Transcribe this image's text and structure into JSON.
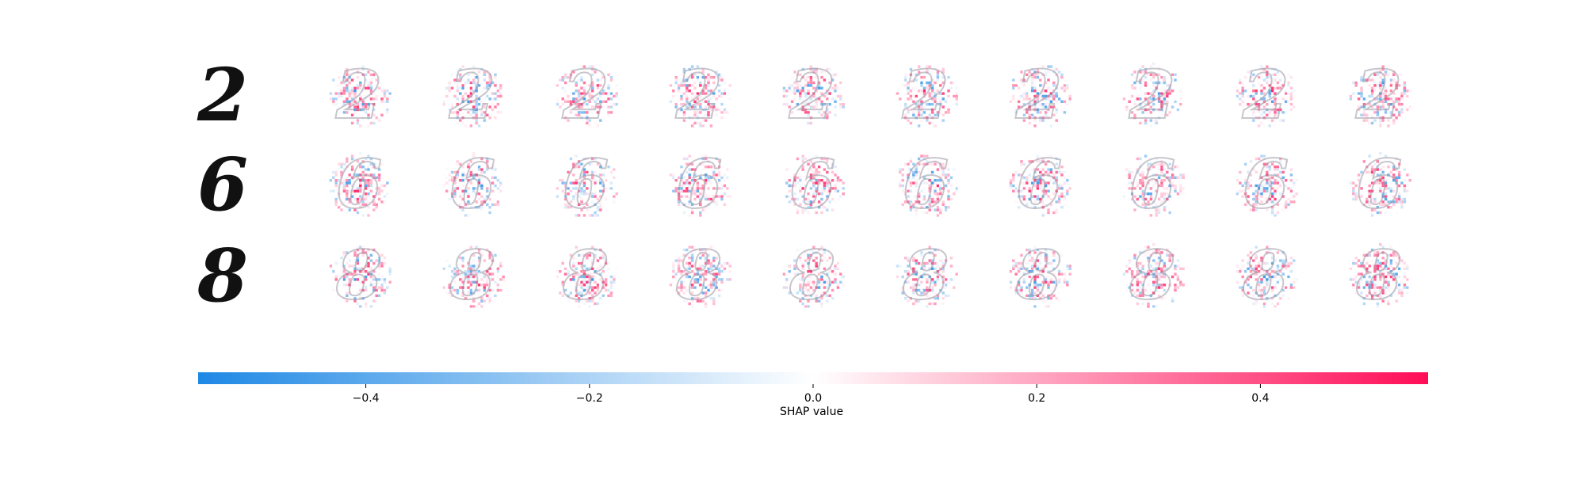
{
  "chart_data": {
    "type": "heatmap",
    "title": "",
    "rows": [
      {
        "digit": "2",
        "glyph": "2"
      },
      {
        "digit": "6",
        "glyph": "6"
      },
      {
        "digit": "8",
        "glyph": "8"
      }
    ],
    "columns": 11,
    "column_roles": [
      "input",
      "class-0",
      "class-1",
      "class-2",
      "class-3",
      "class-4",
      "class-5",
      "class-6",
      "class-7",
      "class-8",
      "class-9"
    ],
    "colorbar": {
      "label": "SHAP value",
      "range": [
        -0.55,
        0.55
      ],
      "ticks": [
        -0.4,
        -0.2,
        0.0,
        0.2,
        0.4
      ],
      "tick_labels": [
        "−0.4",
        "−0.2",
        "0.0",
        "0.2",
        "0.4"
      ],
      "negative_color": "#1e88e5",
      "neutral_color": "#ffffff",
      "positive_color": "#ff0d57"
    }
  }
}
